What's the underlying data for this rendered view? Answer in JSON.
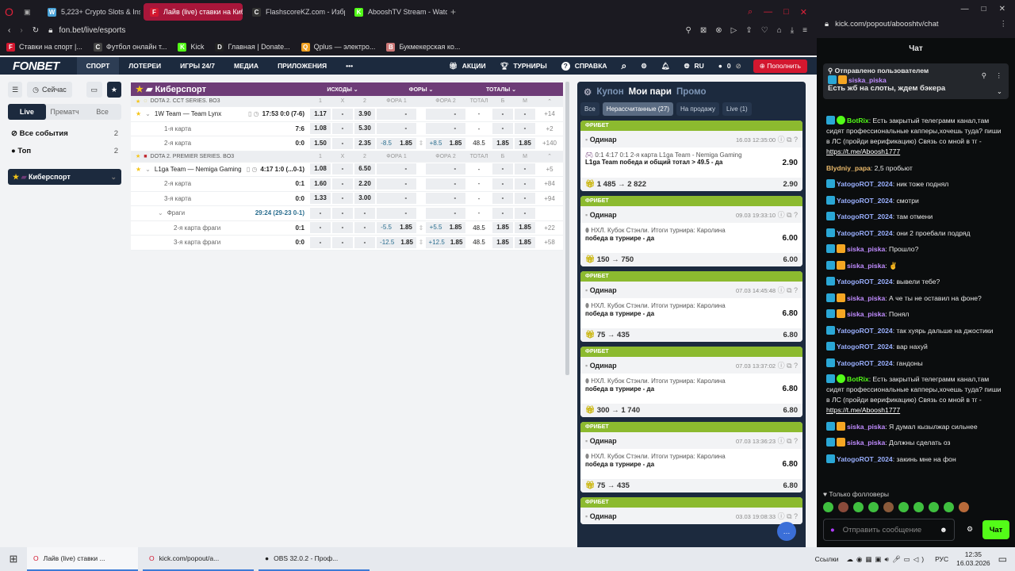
{
  "browser": {
    "tabs": [
      {
        "label": "5,223+ Crypto Slots & Inst",
        "color": "#4aa3d8",
        "glyph": "W"
      },
      {
        "label": "Лайв (live) ставки на Киб",
        "color": "#d3172f",
        "glyph": "F",
        "active": true
      },
      {
        "label": "FlashscoreKZ.com - Избр",
        "color": "#333",
        "glyph": "C"
      },
      {
        "label": "AbooshTV Stream - Watch",
        "color": "#53fc18",
        "glyph": "K"
      }
    ],
    "url": "fon.bet/live/esports",
    "bookmarks": [
      {
        "label": "Ставки на спорт |...",
        "glyph": "F",
        "color": "#d3172f"
      },
      {
        "label": "Футбол онлайн т...",
        "glyph": "C",
        "color": "#444"
      },
      {
        "label": "Kick",
        "glyph": "K",
        "color": "#53fc18"
      },
      {
        "label": "Главная | Donate...",
        "glyph": "D",
        "color": "#222"
      },
      {
        "label": "Qplus — электро...",
        "glyph": "Q",
        "color": "#f0a020"
      },
      {
        "label": "Букмекерская ко...",
        "glyph": "B",
        "color": "#c77"
      }
    ]
  },
  "header": {
    "logo": "FONBET",
    "nav": [
      "СПОРТ",
      "ЛОТЕРЕИ",
      "ИГРЫ 24/7",
      "МЕДИА",
      "ПРИЛОЖЕНИЯ",
      "•••"
    ],
    "promo": "АКЦИИ",
    "tournaments": "ТУРНИРЫ",
    "help": "СПРАВКА",
    "lang": "RU",
    "balance": "0",
    "topup": "Пополнить"
  },
  "side": {
    "now": "Сейчас",
    "tabs": [
      "Live",
      "Прематч",
      "Все"
    ],
    "items": [
      {
        "label": "Все события",
        "count": "2"
      },
      {
        "label": "Топ",
        "count": "2"
      }
    ],
    "selected": "Киберспорт"
  },
  "table": {
    "title": "Киберспорт",
    "groups": [
      "ИСХОДЫ",
      "ФОРЫ",
      "ТОТАЛЫ"
    ],
    "cols": [
      "1",
      "X",
      "2",
      "ФОРА 1",
      "ФОРА 2",
      "ТОТАЛ",
      "Б",
      "М"
    ],
    "rows": [
      {
        "type": "lg",
        "name": "DOTA 2. CCT SERIES. BO3"
      },
      {
        "type": "ev",
        "name": "1W Team — Team Lynx",
        "score": "17:53 0:0 (7-6)",
        "o1": "1.17",
        "ox": "-",
        "o2": "3.90",
        "f1h": "",
        "f1": "-",
        "f2h": "",
        "f2": "-",
        "tot": "-",
        "b": "-",
        "m": "-",
        "more": "+14"
      },
      {
        "type": "sub",
        "name": "1-я карта",
        "score": "7:6",
        "o1": "1.08",
        "ox": "-",
        "o2": "5.30",
        "f1h": "",
        "f1": "-",
        "f2h": "",
        "f2": "-",
        "tot": "-",
        "b": "-",
        "m": "-",
        "more": "+2"
      },
      {
        "type": "sub",
        "name": "2-я карта",
        "score": "0:0",
        "o1": "1.50",
        "ox": "-",
        "o2": "2.35",
        "f1h": "-8.5",
        "f1": "1.85",
        "f2h": "+8.5",
        "f2": "1.85",
        "tot": "48.5",
        "b": "1.85",
        "m": "1.85",
        "more": "+140"
      },
      {
        "type": "lg",
        "name": "DOTA 2. PREMIER SERIES. BO3"
      },
      {
        "type": "ev",
        "name": "L1ga Team — Nemiga Gaming",
        "score": "4:17 1:0 (...0-1)",
        "o1": "1.08",
        "ox": "-",
        "o2": "6.50",
        "f1h": "",
        "f1": "-",
        "f2h": "",
        "f2": "-",
        "tot": "-",
        "b": "-",
        "m": "-",
        "more": "+5"
      },
      {
        "type": "sub",
        "name": "2-я карта",
        "score": "0:1",
        "o1": "1.60",
        "ox": "-",
        "o2": "2.20",
        "f1h": "",
        "f1": "-",
        "f2h": "",
        "f2": "-",
        "tot": "-",
        "b": "-",
        "m": "-",
        "more": "+84"
      },
      {
        "type": "sub",
        "name": "3-я карта",
        "score": "0:0",
        "o1": "1.33",
        "ox": "-",
        "o2": "3.00",
        "f1h": "",
        "f1": "-",
        "f2h": "",
        "f2": "-",
        "tot": "-",
        "b": "-",
        "m": "-",
        "more": "+94"
      },
      {
        "type": "sub",
        "name": "Фраги",
        "score": "29:24 (29-23 0-1)",
        "o1": "-",
        "ox": "-",
        "o2": "-",
        "f1h": "",
        "f1": "-",
        "f2h": "",
        "f2": "-",
        "tot": "-",
        "b": "-",
        "m": "-",
        "more": ""
      },
      {
        "type": "sub2",
        "name": "2-я карта фраги",
        "score": "0:1",
        "o1": "-",
        "ox": "-",
        "o2": "-",
        "f1h": "-5.5",
        "f1": "1.85",
        "f2h": "+5.5",
        "f2": "1.85",
        "tot": "48.5",
        "b": "1.85",
        "m": "1.85",
        "more": "+22"
      },
      {
        "type": "sub2",
        "name": "3-я карта фраги",
        "score": "0:0",
        "o1": "-",
        "ox": "-",
        "o2": "-",
        "f1h": "-12.5",
        "f1": "1.85",
        "f2h": "+12.5",
        "f2": "1.85",
        "tot": "48.5",
        "b": "1.85",
        "m": "1.85",
        "more": "+58"
      }
    ]
  },
  "coupon": {
    "tabs": [
      "Купон",
      "Мои пари",
      "Промо"
    ],
    "filters": [
      "Все",
      "Нерассчитанные (27)",
      "На продажу",
      "Live (1)"
    ],
    "cards": [
      {
        "badge": "ФРИБЕТ",
        "type": "Одинар",
        "time": "16.03 12:35:00",
        "event": "0:1  4:17  0:1 2-я карта L1ga Team - Nemiga Gaming",
        "bet": "L1ga Team победа и общий тотал > 49.5 - да",
        "odds": "2.90",
        "amount": "1 485 → 2 822",
        "total": "2.90"
      },
      {
        "badge": "ФРИБЕТ",
        "type": "Одинар",
        "time": "09.03 19:33:10",
        "event": "НХЛ. Кубок Стэнли. Итоги турнира: Каролина",
        "bet": "победа в турнире - да",
        "odds": "6.00",
        "amount": "150 → 750",
        "total": "6.00"
      },
      {
        "badge": "ФРИБЕТ",
        "type": "Одинар",
        "time": "07.03 14:45:48",
        "event": "НХЛ. Кубок Стэнли. Итоги турнира: Каролина",
        "bet": "победа в турнире - да",
        "odds": "6.80",
        "amount": "75 → 435",
        "total": "6.80"
      },
      {
        "badge": "ФРИБЕТ",
        "type": "Одинар",
        "time": "07.03 13:37:02",
        "event": "НХЛ. Кубок Стэнли. Итоги турнира: Каролина",
        "bet": "победа в турнире - да",
        "odds": "6.80",
        "amount": "300 → 1 740",
        "total": "6.80"
      },
      {
        "badge": "ФРИБЕТ",
        "type": "Одинар",
        "time": "07.03 13:36:23",
        "event": "НХЛ. Кубок Стэнли. Итоги турнира: Каролина",
        "bet": "победа в турнире - да",
        "odds": "6.80",
        "amount": "75 → 435",
        "total": "6.80"
      },
      {
        "badge": "ФРИБЕТ",
        "type": "Одинар",
        "time": "03.03 19:08:33",
        "event": "",
        "bet": "",
        "odds": "",
        "amount": "",
        "total": ""
      }
    ]
  },
  "kick": {
    "url": "kick.com/popout/abooshtv/chat",
    "title": "Чат",
    "pinned": {
      "label": "Отправлено пользователем",
      "user": "siska_piska",
      "text": "Есть жб на слоты, ждем бэкера"
    },
    "messages": [
      {
        "user": "BotRix",
        "color": "#53fc18",
        "text": "Есть закрытый телеграмм канал,там сидят профессиональные капперы,хочешь туда? пиши в ЛС (пройди верификацию) Связь со мной в тг - ",
        "link": "https://t.me/Aboosh1777",
        "badges": [
          "mod",
          "verified"
        ]
      },
      {
        "user": "Blydniy_papa",
        "color": "#e8b86a",
        "text": "2,5 пробьют",
        "badges": []
      },
      {
        "user": "YatogoROT_2024",
        "color": "#9ab0ff",
        "text": "ник тоже поднял",
        "badges": [
          "mod"
        ]
      },
      {
        "user": "YatogoROT_2024",
        "color": "#9ab0ff",
        "text": "смотри",
        "badges": [
          "mod"
        ]
      },
      {
        "user": "YatogoROT_2024",
        "color": "#9ab0ff",
        "text": "там отмени",
        "badges": [
          "mod"
        ]
      },
      {
        "user": "YatogoROT_2024",
        "color": "#9ab0ff",
        "text": "они 2 проебали подряд",
        "badges": [
          "mod"
        ]
      },
      {
        "user": "siska_piska",
        "color": "#c08cff",
        "text": "Прошло?",
        "badges": [
          "mod",
          "crown"
        ]
      },
      {
        "user": "siska_piska",
        "color": "#c08cff",
        "text": "✌",
        "badges": [
          "mod",
          "crown"
        ]
      },
      {
        "user": "YatogoROT_2024",
        "color": "#9ab0ff",
        "text": "вывели тебе?",
        "badges": [
          "mod"
        ]
      },
      {
        "user": "siska_piska",
        "color": "#c08cff",
        "text": "А че ты не оставил на фоне?",
        "badges": [
          "mod",
          "crown"
        ]
      },
      {
        "user": "siska_piska",
        "color": "#c08cff",
        "text": "Понял",
        "badges": [
          "mod",
          "crown"
        ]
      },
      {
        "user": "YatogoROT_2024",
        "color": "#9ab0ff",
        "text": "так хуярь дальше на джостики",
        "badges": [
          "mod"
        ]
      },
      {
        "user": "YatogoROT_2024",
        "color": "#9ab0ff",
        "text": "вар нахуй",
        "badges": [
          "mod"
        ]
      },
      {
        "user": "YatogoROT_2024",
        "color": "#9ab0ff",
        "text": "гандоны",
        "badges": [
          "mod"
        ]
      },
      {
        "user": "BotRix",
        "color": "#53fc18",
        "text": "Есть закрытый телеграмм канал,там сидят профессиональные капперы,хочешь туда? пиши в ЛС (пройди верификацию) Связь со мной в тг - ",
        "link": "https://t.me/Aboosh1777",
        "badges": [
          "mod",
          "verified"
        ]
      },
      {
        "user": "siska_piska",
        "color": "#c08cff",
        "text": "Я думал кызылжар сильнее",
        "badges": [
          "mod",
          "crown"
        ]
      },
      {
        "user": "siska_piska",
        "color": "#c08cff",
        "text": "Должны сделать оз",
        "badges": [
          "mod",
          "crown"
        ]
      },
      {
        "user": "YatogoROT_2024",
        "color": "#9ab0ff",
        "text": "закинь мне на фон",
        "badges": [
          "mod"
        ]
      }
    ],
    "followers_only": "Только фолловеры",
    "placeholder": "Отправить сообщение",
    "send": "Чат"
  },
  "taskbar": {
    "items": [
      "Лайв (live) ставки ...",
      "kick.com/popout/a...",
      "OBS 32.0.2 - Проф..."
    ],
    "links": "Ссылки",
    "lang": "РУС",
    "time": "12:35",
    "date": "16.03.2026"
  }
}
